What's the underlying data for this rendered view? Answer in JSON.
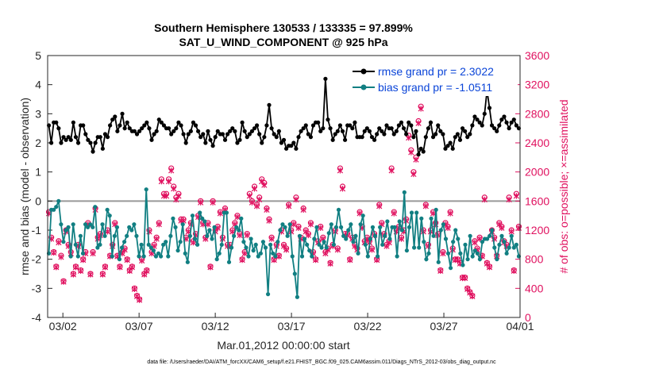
{
  "chart_data": {
    "type": "line",
    "title_line1": "Southern Hemisphere 130533 / 133335 = 97.899%",
    "title_line2": "SAT_U_WIND_COMPONENT @ 925 hPa",
    "ylabel_left": "rmse and bias (model - observation)",
    "ylabel_right": "# of obs: o=possible; ×=assimilated",
    "xlabel": "Mar.01,2012 00:00:00 start",
    "footnote": "data file: /Users/raeder/DAI/ATM_forcXX/CAM6_setup/f.e21.FHIST_BGC.f09_025.CAM6assim.011/Diags_NTrS_2012-03/obs_diag_output.nc",
    "x_tick_labels": [
      "03/02",
      "03/07",
      "03/12",
      "03/17",
      "03/22",
      "03/27",
      "04/01"
    ],
    "x_tick_days": [
      1,
      6,
      11,
      16,
      21,
      26,
      31
    ],
    "x_range_days": [
      0,
      31
    ],
    "ylim_left": [
      -4,
      5
    ],
    "yticks_left": [
      5,
      4,
      3,
      2,
      1,
      0,
      -1,
      -2,
      -3,
      -4
    ],
    "ylim_right": [
      0,
      3600
    ],
    "yticks_right": [
      3600,
      3200,
      2800,
      2400,
      2000,
      1600,
      1200,
      800,
      400,
      0
    ],
    "series": [
      {
        "name": "rmse",
        "legend": "rmse grand pr = 2.3022",
        "color": "#000000",
        "values": [
          2.6,
          2.0,
          2.7,
          2.7,
          2.5,
          2.0,
          2.2,
          2.1,
          2.2,
          2.1,
          2.7,
          2.2,
          2.0,
          2.6,
          2.6,
          2.3,
          2.1,
          2.0,
          1.7,
          2.0,
          2.2,
          2.2,
          1.8,
          2.3,
          2.2,
          2.6,
          2.8,
          2.9,
          2.4,
          2.6,
          3.0,
          2.5,
          2.7,
          2.5,
          2.4,
          2.4,
          2.3,
          2.4,
          2.5,
          2.6,
          2.7,
          2.5,
          2.1,
          2.3,
          2.4,
          2.8,
          2.7,
          2.6,
          2.5,
          2.5,
          2.3,
          2.4,
          2.5,
          2.7,
          2.6,
          2.3,
          2.0,
          2.3,
          2.4,
          2.7,
          2.6,
          2.4,
          2.2,
          2.3,
          2.0,
          2.4,
          2.1,
          1.9,
          2.2,
          2.4,
          2.3,
          2.3,
          2.1,
          2.3,
          2.4,
          2.5,
          2.4,
          2.0,
          2.1,
          2.7,
          2.4,
          2.2,
          2.3,
          2.4,
          2.5,
          2.6,
          2.3,
          2.0,
          2.2,
          2.6,
          3.3,
          2.5,
          2.3,
          2.2,
          2.4,
          2.0,
          2.1,
          1.8,
          1.9,
          1.9,
          2.0,
          1.8,
          2.2,
          2.4,
          2.5,
          2.6,
          2.3,
          2.2,
          2.6,
          2.7,
          2.7,
          2.4,
          2.5,
          4.2,
          2.8,
          2.5,
          2.1,
          2.3,
          2.4,
          2.6,
          2.4,
          2.1,
          2.6,
          2.6,
          2.5,
          2.7,
          2.2,
          2.2,
          2.2,
          2.4,
          2.5,
          2.4,
          2.2,
          2.1,
          2.3,
          2.5,
          2.4,
          2.3,
          2.6,
          2.5,
          2.5,
          2.3,
          2.4,
          2.6,
          2.7,
          2.5,
          2.3,
          2.7,
          2.6,
          2.2,
          2.4,
          1.6,
          1.8,
          1.7,
          2.2,
          2.5,
          2.7,
          2.2,
          2.3,
          2.6,
          2.4,
          2.3,
          1.8,
          1.9,
          2.0,
          1.8,
          2.2,
          2.3,
          2.1,
          2.5,
          2.4,
          2.2,
          2.3,
          2.6,
          2.9,
          2.8,
          2.7,
          2.6,
          3.0,
          3.8,
          3.2,
          2.6,
          2.5,
          2.4,
          2.6,
          2.8,
          2.9,
          2.7,
          2.5,
          2.7,
          2.8,
          2.6,
          2.5
        ]
      },
      {
        "name": "bias",
        "legend": "bias grand pr = -1.0511",
        "color": "#117f82",
        "values": [
          -1.8,
          -0.3,
          -0.3,
          -0.2,
          0.0,
          -0.8,
          -1.4,
          -1.0,
          -0.9,
          -1.9,
          -0.8,
          -1.5,
          -1.9,
          -1.2,
          -1.8,
          -0.8,
          -0.9,
          -0.8,
          -0.9,
          -0.2,
          -1.6,
          -1.5,
          -0.8,
          -1.2,
          -0.3,
          -0.5,
          -1.9,
          -1.2,
          -0.9,
          -2.0,
          -1.6,
          -1.4,
          -1.2,
          -0.9,
          -1.0,
          -0.8,
          -1.2,
          -1.9,
          -1.5,
          -1.9,
          0.4,
          -1.5,
          -1.6,
          -1.7,
          -1.9,
          -1.8,
          -1.9,
          -1.5,
          -1.4,
          -1.9,
          -1.2,
          -0.6,
          -0.9,
          -1.7,
          -1.4,
          -0.8,
          -1.8,
          -2.1,
          -1.2,
          -0.5,
          -1.3,
          -1.5,
          -0.4,
          -0.6,
          -0.7,
          -1.2,
          -1.0,
          -1.3,
          -0.9,
          -2.0,
          -1.8,
          -1.5,
          -0.4,
          -0.4,
          -2.1,
          -1.6,
          -1.2,
          -0.9,
          -1.0,
          -0.6,
          -1.4,
          -1.6,
          -1.9,
          -1.3,
          -1.7,
          -1.5,
          -1.9,
          -1.8,
          -1.4,
          -1.6,
          -3.2,
          -1.5,
          -1.8,
          -1.9,
          -1.4,
          -1.0,
          -0.8,
          -0.9,
          -1.2,
          -0.8,
          -1.9,
          -2.5,
          -3.3,
          -1.2,
          -1.9,
          -1.3,
          -1.5,
          -1.7,
          -1.9,
          -1.3,
          -0.9,
          -1.5,
          -1.6,
          -1.4,
          -1.6,
          -1.1,
          -0.8,
          -1.5,
          -0.9,
          -0.3,
          -0.9,
          -1.2,
          -1.3,
          -1.0,
          -0.8,
          -1.4,
          -1.2,
          -1.8,
          -0.8,
          -0.5,
          -1.5,
          -1.9,
          -1.3,
          -0.9,
          -1.2,
          -1.9,
          -0.9,
          -1.5,
          -1.2,
          -0.7,
          -1.3,
          -0.9,
          -0.9,
          -1.9,
          -0.7,
          -1.0,
          0.3,
          -1.7,
          -0.9,
          -0.4,
          -1.6,
          -0.4,
          -1.6,
          -0.6,
          -1.4,
          -2.0,
          -1.8,
          -0.6,
          -1.2,
          -0.3,
          -2.1,
          -1.0,
          -0.8,
          -1.3,
          -1.8,
          -2.3,
          -1.4,
          -1.0,
          -1.3,
          -1.8,
          -2.2,
          -1.5,
          -2.0,
          -1.2,
          -1.9,
          -1.7,
          -1.8,
          -2.0,
          -1.4,
          -1.3,
          -1.3,
          -1.2,
          -1.0,
          -1.6,
          -2.0,
          -1.5,
          -1.2,
          -1.4,
          -1.8,
          -1.6,
          -1.2,
          -1.6,
          -1.5,
          -1.9
        ]
      },
      {
        "name": "obs_possible",
        "marker": "o",
        "color": "#e0115f",
        "values": [
          1450,
          1100,
          900,
          700,
          1050,
          850,
          500,
          1200,
          1000,
          900,
          600,
          700,
          1000,
          650,
          800,
          900,
          1300,
          600,
          900,
          1500,
          1100,
          1150,
          600,
          700,
          1200,
          850,
          1000,
          1300,
          850,
          700,
          900,
          950,
          800,
          650,
          700,
          400,
          300,
          250,
          800,
          600,
          650,
          1200,
          900,
          1000,
          1100,
          1300,
          1900,
          1700,
          1700,
          1900,
          2050,
          1800,
          1650,
          1700,
          1350,
          1350,
          1100,
          1200,
          1300,
          1050,
          1150,
          1400,
          1600,
          1300,
          1100,
          1300,
          700,
          1600,
          1200,
          1250,
          1450,
          1100,
          1500,
          1000,
          1000,
          1200,
          1300,
          1400,
          1150,
          800,
          900,
          1150,
          1700,
          1600,
          1800,
          1550,
          1650,
          1900,
          1850,
          1500,
          1350,
          1100,
          800,
          1000,
          850,
          1200,
          1000,
          950,
          1550,
          1200,
          1300,
          1650,
          1250,
          1100,
          1500,
          1200,
          1150,
          1300,
          900,
          800,
          1050,
          1250,
          1100,
          900,
          950,
          750,
          1000,
          1200,
          950,
          2050,
          1800,
          1150,
          1150,
          800,
          1100,
          1000,
          950,
          1450,
          1250,
          1050,
          1100,
          1050,
          950,
          1150,
          800,
          1550,
          1300,
          1150,
          1000,
          1050,
          2050,
          1450,
          1200,
          1250,
          1100,
          1200,
          1350,
          2500,
          2300,
          2000,
          2200,
          2700,
          2900,
          1200,
          1550,
          1000,
          1200,
          1450,
          1300,
          1150,
          650,
          900,
          1300,
          1250,
          1450,
          950,
          800,
          800,
          750,
          550,
          550,
          400,
          350,
          300,
          1050,
          950,
          1100,
          850,
          1650,
          750,
          700,
          1200,
          1100,
          850,
          1300,
          1250,
          1050,
          1000,
          1650,
          1200,
          650,
          1700,
          1250
        ]
      },
      {
        "name": "obs_assimilated",
        "marker": "x",
        "color": "#e0115f",
        "values": [
          1430,
          1080,
          890,
          690,
          1030,
          830,
          490,
          1180,
          980,
          880,
          590,
          690,
          980,
          640,
          790,
          880,
          1280,
          590,
          880,
          1480,
          1080,
          1130,
          590,
          690,
          1180,
          840,
          980,
          1280,
          840,
          690,
          880,
          930,
          790,
          640,
          690,
          390,
          290,
          240,
          780,
          590,
          640,
          1180,
          880,
          980,
          1080,
          1280,
          1870,
          1670,
          1670,
          1870,
          2020,
          1770,
          1620,
          1670,
          1330,
          1330,
          1080,
          1180,
          1280,
          1030,
          1130,
          1380,
          1580,
          1280,
          1080,
          1280,
          690,
          1580,
          1180,
          1230,
          1430,
          1080,
          1480,
          980,
          980,
          1180,
          1280,
          1380,
          1130,
          790,
          880,
          1130,
          1670,
          1580,
          1770,
          1530,
          1620,
          1870,
          1820,
          1480,
          1330,
          1080,
          790,
          980,
          840,
          1180,
          980,
          930,
          1530,
          1180,
          1280,
          1620,
          1230,
          1080,
          1480,
          1180,
          1130,
          1280,
          880,
          790,
          1030,
          1230,
          1080,
          880,
          930,
          740,
          980,
          1180,
          930,
          2020,
          1770,
          1130,
          1130,
          790,
          1080,
          980,
          930,
          1430,
          1230,
          1030,
          1080,
          1030,
          930,
          1130,
          790,
          1530,
          1280,
          1130,
          980,
          1030,
          2020,
          1430,
          1180,
          1230,
          1080,
          1180,
          1330,
          2470,
          2270,
          1970,
          2170,
          2670,
          2870,
          1180,
          1530,
          980,
          1180,
          1430,
          1280,
          1130,
          640,
          880,
          1280,
          1230,
          1430,
          930,
          790,
          790,
          740,
          540,
          540,
          390,
          340,
          290,
          1030,
          930,
          1080,
          840,
          1620,
          740,
          690,
          1180,
          1080,
          840,
          1280,
          1230,
          1030,
          980,
          1620,
          1180,
          640,
          1670,
          1230
        ]
      }
    ]
  }
}
